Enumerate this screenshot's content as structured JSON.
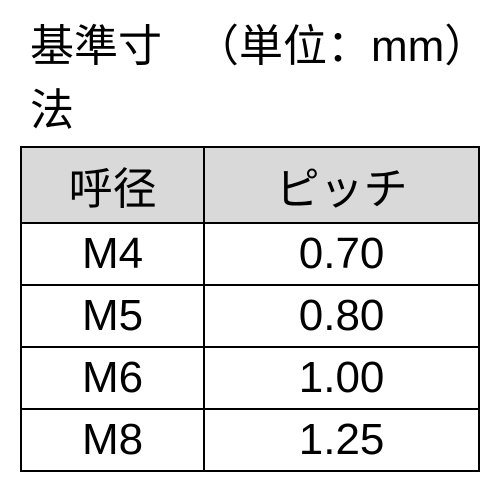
{
  "header": {
    "title": "基準寸法",
    "unit": "（単位：mm）"
  },
  "table": {
    "type": "table",
    "columns": [
      "呼径",
      "ピッチ"
    ],
    "rows": [
      [
        "M4",
        "0.70"
      ],
      [
        "M5",
        "0.80"
      ],
      [
        "M6",
        "1.00"
      ],
      [
        "M8",
        "1.25"
      ]
    ],
    "header_bg": "#d9d9d9",
    "cell_bg": "#ffffff",
    "border_color": "#000000",
    "text_color": "#000000",
    "header_fontsize": 44,
    "cell_fontsize": 44,
    "col_widths": [
      "40%",
      "60%"
    ]
  }
}
